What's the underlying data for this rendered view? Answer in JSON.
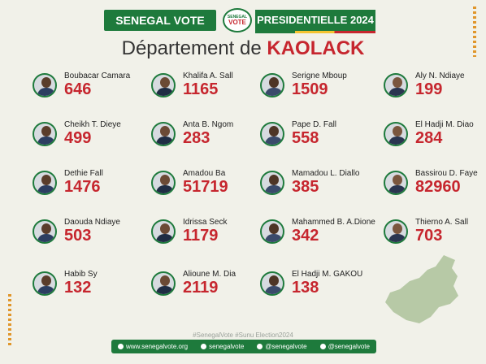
{
  "header": {
    "brand": "SENEGAL VOTE",
    "logo_line1": "SENEGAL",
    "logo_line2": "VOTE",
    "election": "PRESIDENTIELLE 2024"
  },
  "title": {
    "prefix": "Département de",
    "department": "KAOLACK"
  },
  "candidates": [
    {
      "name": "Boubacar Camara",
      "votes": "646"
    },
    {
      "name": "Khalifa A. Sall",
      "votes": "1165"
    },
    {
      "name": "Serigne Mboup",
      "votes": "1509"
    },
    {
      "name": "Aly N. Ndiaye",
      "votes": "199"
    },
    {
      "name": "Cheikh T. Dieye",
      "votes": "499"
    },
    {
      "name": "Anta B. Ngom",
      "votes": "283"
    },
    {
      "name": "Pape D. Fall",
      "votes": "558"
    },
    {
      "name": "El Hadji M. Diao",
      "votes": "284"
    },
    {
      "name": "Dethie Fall",
      "votes": "1476"
    },
    {
      "name": "Amadou Ba",
      "votes": "51719"
    },
    {
      "name": "Mamadou L. Diallo",
      "votes": "385"
    },
    {
      "name": "Bassirou D. Faye",
      "votes": "82960"
    },
    {
      "name": "Daouda Ndiaye",
      "votes": "503"
    },
    {
      "name": "Idrissa Seck",
      "votes": "1179"
    },
    {
      "name": "Mahammed B. A.Dione",
      "votes": "342"
    },
    {
      "name": "Thierno A. Sall",
      "votes": "703"
    },
    {
      "name": "Habib Sy",
      "votes": "132"
    },
    {
      "name": "Alioune M. Dia",
      "votes": "2119"
    },
    {
      "name": "El Hadji M. GAKOU",
      "votes": "138"
    }
  ],
  "hashtags": "#SenegalVote    #Sunu Election2024",
  "footer": {
    "website": "www.senegalvote.org",
    "facebook": "senegalvote",
    "twitter": "@senegalvote",
    "instagram": "@senegalvote"
  },
  "colors": {
    "green": "#1e7a3c",
    "red": "#c6262e",
    "yellow": "#f4c430",
    "background": "#f1f1e9"
  },
  "icons": [
    "globe-icon",
    "facebook-icon",
    "twitter-icon",
    "instagram-icon"
  ]
}
